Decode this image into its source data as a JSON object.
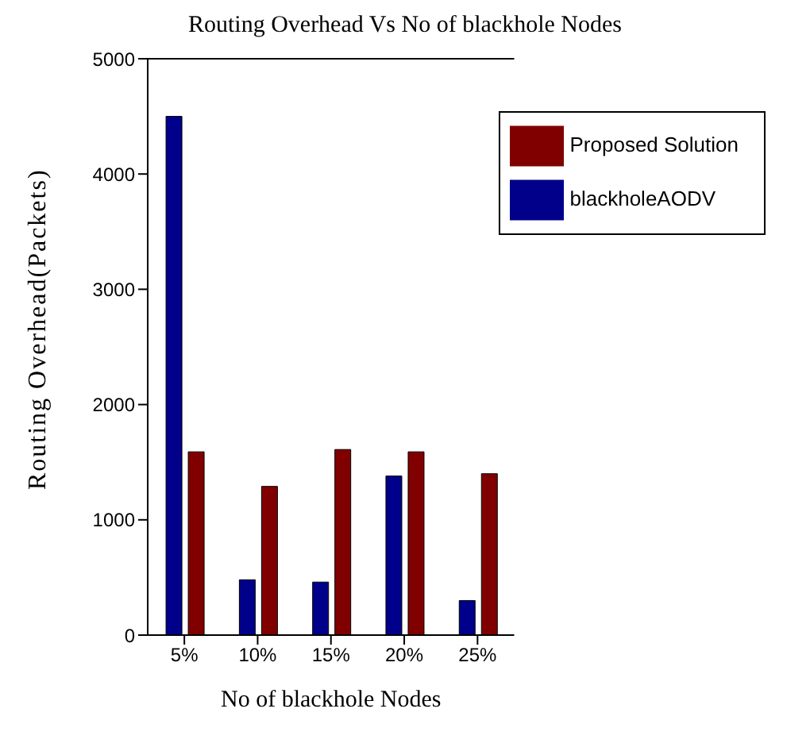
{
  "chart_data": {
    "type": "bar",
    "title": "Routing Overhead Vs No of blackhole Nodes",
    "xlabel": "No of blackhole Nodes",
    "ylabel": "Routing Overhead(Packets)",
    "categories": [
      "5%",
      "10%",
      "15%",
      "20%",
      "25%"
    ],
    "series": [
      {
        "name": "blackholeAODV",
        "color": "#00008b",
        "values": [
          4500,
          480,
          460,
          1380,
          300
        ]
      },
      {
        "name": "Proposed Solution",
        "color": "#800000",
        "values": [
          1590,
          1290,
          1610,
          1590,
          1400
        ]
      }
    ],
    "ylim": [
      0,
      5000
    ],
    "yticks": [
      0,
      1000,
      2000,
      3000,
      4000,
      5000
    ],
    "grid": false,
    "legend": "top right"
  }
}
